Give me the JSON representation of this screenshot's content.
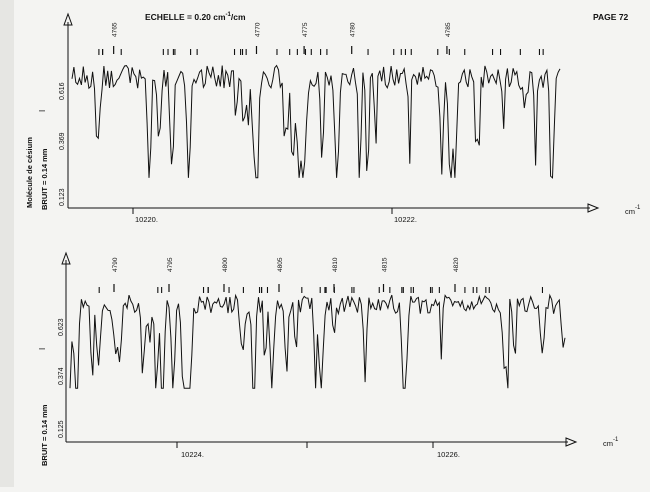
{
  "header": {
    "scale_label": "ECHELLE = 0.20 cm",
    "scale_exp": "-1",
    "scale_suffix": "/cm",
    "page_label": "PAGE 72"
  },
  "charts_text": {
    "molecule_label": "Molécule de césium",
    "noise_label": "BRUIT = 0.14 mm",
    "axis_unit": "cm",
    "axis_unit_exp": "-1",
    "i_marker": "I"
  },
  "chart_data": [
    {
      "type": "line",
      "title": "",
      "x_axis_ticks": [
        "10220.",
        "10222."
      ],
      "y_ticks": [
        "0.123",
        "0.369",
        "0.616"
      ],
      "y_side_label": "I",
      "line_numbers": [
        "4765",
        "4770",
        "4775",
        "4780",
        "4785"
      ],
      "line_number_positions": [
        10219.55,
        10220.75,
        10221.15,
        10221.55,
        10222.35
      ],
      "xlim": [
        10219.2,
        10223.3
      ],
      "ylim": [
        0.0,
        0.75
      ],
      "trace_seed": 7,
      "noise": "0.14 mm",
      "grid": false
    },
    {
      "type": "line",
      "title": "",
      "x_axis_ticks": [
        "10224.",
        "10226."
      ],
      "y_ticks": [
        "0.125",
        "0.374",
        "0.623"
      ],
      "y_side_label": "I",
      "line_numbers": [
        "4790",
        "4795",
        "4800",
        "4805",
        "4810",
        "4815",
        "4820"
      ],
      "line_number_positions": [
        10223.4,
        10223.9,
        10224.4,
        10224.9,
        10225.4,
        10225.85,
        10226.5
      ],
      "xlim": [
        10223.0,
        10227.5
      ],
      "ylim": [
        0.0,
        0.75
      ],
      "trace_seed": 19,
      "noise": "0.14 mm",
      "grid": false
    }
  ]
}
